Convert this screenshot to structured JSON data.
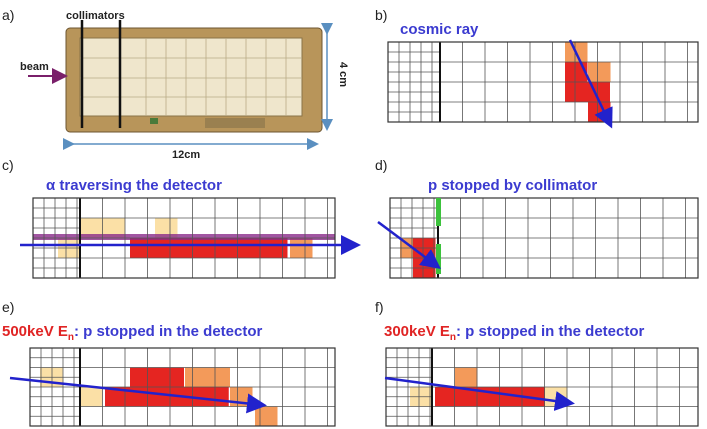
{
  "panels": [
    {
      "label": "a)",
      "annotations": {
        "collimators": "collimators",
        "beam": "beam",
        "height": "4 cm",
        "width": "12cm"
      }
    },
    {
      "label": "b)",
      "title": "cosmic ray"
    },
    {
      "label": "c)",
      "title": "α traversing the detector"
    },
    {
      "label": "d)",
      "title": "p stopped by collimator"
    },
    {
      "label": "e)",
      "title": {
        "prefix": "500keV E",
        "sub": "n",
        "suffix": ": p stopped in the detector"
      }
    },
    {
      "label": "f)",
      "title": {
        "prefix": "300keV E",
        "sub": "n",
        "suffix": ": p stopped in the detector"
      }
    }
  ]
}
